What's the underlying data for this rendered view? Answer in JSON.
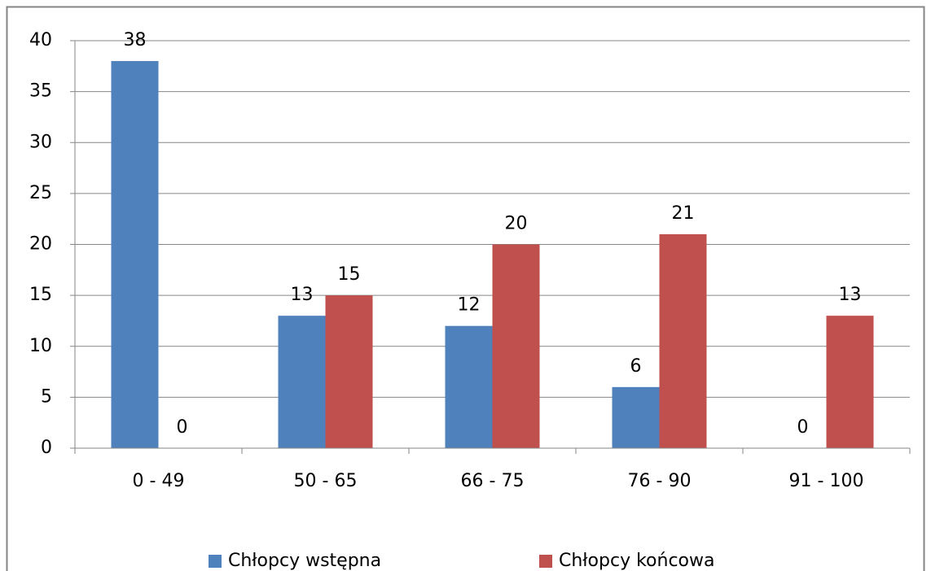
{
  "chart_data": {
    "type": "bar",
    "categories": [
      "0 - 49",
      "50 - 65",
      "66 - 75",
      "76 - 90",
      "91 - 100"
    ],
    "series": [
      {
        "name": "Chłopcy wstępna",
        "color": "#4f81bd",
        "values": [
          38,
          13,
          12,
          6,
          0
        ]
      },
      {
        "name": "Chłopcy końcowa",
        "color": "#c0504d",
        "values": [
          0,
          15,
          20,
          21,
          13
        ]
      }
    ],
    "ylim": [
      0,
      40
    ],
    "yticks": [
      0,
      5,
      10,
      15,
      20,
      25,
      30,
      35,
      40
    ],
    "grid": true,
    "legend": "bottom"
  }
}
